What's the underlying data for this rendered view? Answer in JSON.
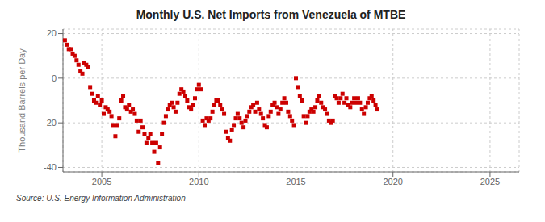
{
  "chart_data": {
    "type": "scatter",
    "title": "Monthly U.S. Net Imports from Venezuela of MTBE",
    "ylabel": "Thousand Barrels per Day",
    "annotation": "Source: U.S. Energy Information Administration",
    "xlim": [
      2003.0,
      2026.5
    ],
    "ylim": [
      -42,
      22
    ],
    "xticks": [
      2005,
      2010,
      2015,
      2020,
      2025
    ],
    "yticks": [
      -40,
      -20,
      0,
      20
    ],
    "grid": true,
    "color": "#cc0000",
    "marker": "square",
    "x": [
      2003.1,
      2003.2,
      2003.3,
      2003.4,
      2003.5,
      2003.6,
      2003.7,
      2003.8,
      2003.9,
      2004.0,
      2004.1,
      2004.2,
      2004.3,
      2004.4,
      2004.5,
      2004.6,
      2004.7,
      2004.8,
      2004.9,
      2005.0,
      2005.1,
      2005.2,
      2005.3,
      2005.4,
      2005.5,
      2005.6,
      2005.7,
      2005.8,
      2005.9,
      2006.0,
      2006.1,
      2006.2,
      2006.3,
      2006.4,
      2006.5,
      2006.6,
      2006.7,
      2006.8,
      2006.9,
      2007.0,
      2007.1,
      2007.2,
      2007.3,
      2007.4,
      2007.5,
      2007.6,
      2007.7,
      2007.8,
      2007.9,
      2008.0,
      2008.1,
      2008.2,
      2008.3,
      2008.4,
      2008.5,
      2008.6,
      2008.7,
      2008.8,
      2008.9,
      2009.0,
      2009.1,
      2009.2,
      2009.3,
      2009.4,
      2009.5,
      2009.6,
      2009.7,
      2009.8,
      2009.9,
      2010.0,
      2010.1,
      2010.2,
      2010.3,
      2010.4,
      2010.5,
      2010.6,
      2010.7,
      2010.8,
      2010.9,
      2011.0,
      2011.1,
      2011.2,
      2011.3,
      2011.4,
      2011.5,
      2011.6,
      2011.7,
      2011.8,
      2011.9,
      2012.0,
      2012.1,
      2012.2,
      2012.3,
      2012.4,
      2012.5,
      2012.6,
      2012.7,
      2012.8,
      2012.9,
      2013.0,
      2013.1,
      2013.2,
      2013.3,
      2013.4,
      2013.5,
      2013.6,
      2013.7,
      2013.8,
      2013.9,
      2014.0,
      2014.1,
      2014.2,
      2014.3,
      2014.4,
      2014.5,
      2014.6,
      2014.7,
      2014.8,
      2014.9,
      2015.0,
      2015.1,
      2015.2,
      2015.3,
      2015.4,
      2015.5,
      2015.6,
      2015.7,
      2015.8,
      2015.9,
      2016.0,
      2016.1,
      2016.2,
      2016.3,
      2016.4,
      2016.5,
      2016.6,
      2016.7,
      2016.8,
      2016.9,
      2017.0,
      2017.1,
      2017.2,
      2017.3,
      2017.4,
      2017.5,
      2017.6,
      2017.7,
      2017.8,
      2017.9,
      2018.0,
      2018.1,
      2018.2,
      2018.3,
      2018.4,
      2018.5,
      2018.6,
      2018.7,
      2018.8,
      2018.9,
      2019.0,
      2019.1,
      2019.2
    ],
    "y": [
      17,
      15,
      13,
      13,
      11,
      10,
      8,
      6,
      3,
      2,
      7,
      6,
      5,
      -4,
      -7,
      -10,
      -11,
      -8,
      -12,
      -10,
      -16,
      -13,
      -14,
      -15,
      -17,
      -21,
      -26,
      -21,
      -18,
      -10,
      -8,
      -13,
      -14,
      -12,
      -15,
      -14,
      -16,
      -19,
      -24,
      -19,
      -22,
      -25,
      -29,
      -27,
      -25,
      -29,
      -33,
      -29,
      -38,
      -31,
      -25,
      -20,
      -17,
      -14,
      -12,
      -11,
      -13,
      -15,
      -11,
      -7,
      -5,
      -6,
      -8,
      -10,
      -13,
      -14,
      -12,
      -9,
      -5,
      -3,
      -5,
      -19,
      -21,
      -18,
      -19,
      -18,
      -15,
      -12,
      -10,
      -10,
      -12,
      -14,
      -16,
      -24,
      -27,
      -28,
      -23,
      -21,
      -18,
      -16,
      -18,
      -20,
      -22,
      -19,
      -17,
      -15,
      -13,
      -12,
      -15,
      -11,
      -14,
      -16,
      -18,
      -21,
      -22,
      -17,
      -15,
      -12,
      -11,
      -13,
      -16,
      -14,
      -11,
      -9,
      -11,
      -15,
      -17,
      -19,
      -21,
      0,
      -4,
      -8,
      -10,
      -17,
      -20,
      -17,
      -15,
      -14,
      -15,
      -13,
      -10,
      -8,
      -11,
      -13,
      -14,
      -16,
      -19,
      -20,
      -19,
      -8,
      -9,
      -11,
      -9,
      -7,
      -11,
      -9,
      -12,
      -13,
      -11,
      -9,
      -11,
      -9,
      -11,
      -14,
      -16,
      -13,
      -11,
      -9,
      -8,
      -10,
      -12,
      -14
    ]
  }
}
